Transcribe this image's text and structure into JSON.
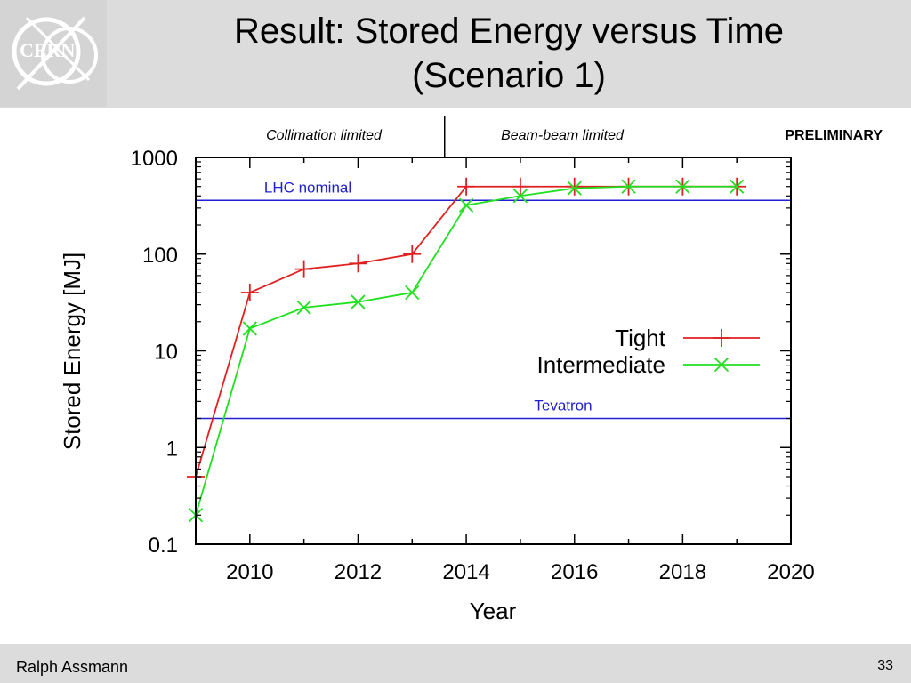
{
  "slide": {
    "title_line1": "Result: Stored Energy versus Time",
    "title_line2": "(Scenario 1)",
    "author": "Ralph Assmann",
    "page_number": "33",
    "logo_text": "CERN"
  },
  "annotations": {
    "left_region": "Collimation limited",
    "right_region": "Beam-beam limited",
    "stamp": "PRELIMINARY",
    "divider_year": 2013.6
  },
  "chart_data": {
    "type": "line",
    "xlabel": "Year",
    "ylabel": "Stored Energy [MJ]",
    "xlim": [
      2009,
      2020
    ],
    "ylim": [
      0.1,
      1000
    ],
    "yscale": "log",
    "x_ticks": [
      2010,
      2012,
      2014,
      2016,
      2018,
      2020
    ],
    "y_ticks": [
      0.1,
      1,
      10,
      100,
      1000
    ],
    "y_tick_labels": [
      "0.1",
      "1",
      "10",
      "100",
      "1000"
    ],
    "grid": false,
    "legend_position": "right",
    "series": [
      {
        "name": "Tight",
        "color": "#e02020",
        "marker": "plus",
        "x": [
          2009,
          2010,
          2011,
          2012,
          2013,
          2014,
          2015,
          2016,
          2017,
          2018,
          2019
        ],
        "y": [
          0.5,
          40,
          70,
          80,
          100,
          500,
          500,
          500,
          500,
          500,
          500
        ]
      },
      {
        "name": "Intermediate",
        "color": "#20e020",
        "marker": "cross",
        "x": [
          2009,
          2010,
          2011,
          2012,
          2013,
          2014,
          2015,
          2016,
          2017,
          2018,
          2019
        ],
        "y": [
          0.2,
          17,
          28,
          32,
          40,
          320,
          400,
          480,
          500,
          500,
          500
        ]
      }
    ],
    "reference_lines": [
      {
        "label": "LHC nominal",
        "value": 360,
        "color": "#2020d0"
      },
      {
        "label": "Tevatron",
        "value": 2,
        "color": "#2020d0"
      }
    ]
  }
}
